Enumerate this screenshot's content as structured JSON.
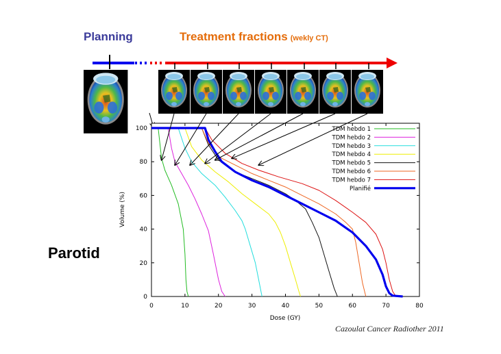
{
  "header": {
    "planning": "Planning",
    "treatment": "Treatment fractions",
    "treatment_sub": "(wekly CT)"
  },
  "side_label": "Parotid",
  "citation": "Cazoulat Cancer Radiother 2011",
  "colors": {
    "planning_text": "#3b3b9a",
    "treatment_text": "#e46c0a",
    "timeline_blue": "#0000ee",
    "timeline_red": "#ee0000"
  },
  "chart_data": {
    "type": "line",
    "xlabel": "Dose (GY)",
    "ylabel": "Volume (%)",
    "xlim": [
      0,
      80
    ],
    "ylim": [
      0,
      100
    ],
    "xticks": [
      0,
      10,
      20,
      30,
      40,
      50,
      60,
      70,
      80
    ],
    "yticks": [
      0,
      20,
      40,
      60,
      80,
      100
    ],
    "legend_position": "top-right",
    "series": [
      {
        "name": "TDM hebdo 1",
        "color": "#22bb22",
        "width": 1,
        "points": [
          [
            0,
            100
          ],
          [
            2,
            100
          ],
          [
            3,
            82
          ],
          [
            4,
            75
          ],
          [
            6,
            66
          ],
          [
            8,
            55
          ],
          [
            9.5,
            40
          ],
          [
            10,
            25
          ],
          [
            10.3,
            10
          ],
          [
            10.6,
            3
          ],
          [
            11,
            0
          ]
        ]
      },
      {
        "name": "TDM hebdo 2",
        "color": "#dd22dd",
        "width": 1,
        "points": [
          [
            0,
            100
          ],
          [
            5,
            100
          ],
          [
            6,
            88
          ],
          [
            7,
            80
          ],
          [
            9,
            73
          ],
          [
            11,
            66
          ],
          [
            13,
            58
          ],
          [
            15,
            49
          ],
          [
            17,
            39
          ],
          [
            18.5,
            25
          ],
          [
            20,
            10
          ],
          [
            21,
            3
          ],
          [
            22,
            0
          ]
        ]
      },
      {
        "name": "TDM hebdo 3",
        "color": "#22dddd",
        "width": 1,
        "points": [
          [
            0,
            100
          ],
          [
            8,
            100
          ],
          [
            10,
            88
          ],
          [
            12,
            80
          ],
          [
            15,
            73
          ],
          [
            19,
            66
          ],
          [
            22,
            59
          ],
          [
            25,
            51
          ],
          [
            27,
            45
          ],
          [
            28,
            40
          ],
          [
            29.5,
            30
          ],
          [
            31,
            20
          ],
          [
            32,
            10
          ],
          [
            32.7,
            3
          ],
          [
            33,
            0
          ]
        ]
      },
      {
        "name": "TDM hebdo 4",
        "color": "#eeee00",
        "width": 1,
        "points": [
          [
            0,
            100
          ],
          [
            10,
            100
          ],
          [
            12,
            89
          ],
          [
            15,
            81
          ],
          [
            19,
            74
          ],
          [
            23,
            68
          ],
          [
            27,
            61
          ],
          [
            31,
            55
          ],
          [
            35,
            49
          ],
          [
            37,
            44
          ],
          [
            38.5,
            38
          ],
          [
            40,
            30
          ],
          [
            41.5,
            20
          ],
          [
            43,
            10
          ],
          [
            44,
            3
          ],
          [
            44.5,
            0
          ]
        ]
      },
      {
        "name": "TDM hebdo 5",
        "color": "#111111",
        "width": 1,
        "points": [
          [
            0,
            100
          ],
          [
            15,
            100
          ],
          [
            17,
            90
          ],
          [
            20,
            81
          ],
          [
            25,
            74
          ],
          [
            30,
            70
          ],
          [
            35,
            66
          ],
          [
            40,
            61
          ],
          [
            43,
            57
          ],
          [
            46,
            52
          ],
          [
            48,
            44
          ],
          [
            50,
            35
          ],
          [
            51.5,
            25
          ],
          [
            53,
            15
          ],
          [
            54.5,
            5
          ],
          [
            55.5,
            0
          ]
        ]
      },
      {
        "name": "TDM hebdo 6",
        "color": "#ee6622",
        "width": 1,
        "points": [
          [
            0,
            100
          ],
          [
            15,
            100
          ],
          [
            17,
            91
          ],
          [
            20,
            83
          ],
          [
            25,
            78
          ],
          [
            30,
            73
          ],
          [
            35,
            69
          ],
          [
            40,
            65
          ],
          [
            45,
            60
          ],
          [
            50,
            55
          ],
          [
            55,
            49
          ],
          [
            58,
            44
          ],
          [
            60,
            40
          ],
          [
            61,
            32
          ],
          [
            62,
            20
          ],
          [
            63,
            8
          ],
          [
            64,
            0
          ]
        ]
      },
      {
        "name": "TDM hebdo 7",
        "color": "#dd1111",
        "width": 1,
        "points": [
          [
            0,
            100
          ],
          [
            16,
            100
          ],
          [
            18,
            93
          ],
          [
            22,
            85
          ],
          [
            27,
            79
          ],
          [
            32,
            75
          ],
          [
            38,
            71
          ],
          [
            45,
            67
          ],
          [
            50,
            63
          ],
          [
            55,
            57
          ],
          [
            60,
            50
          ],
          [
            64,
            44
          ],
          [
            67,
            37
          ],
          [
            69,
            28
          ],
          [
            70,
            20
          ],
          [
            71,
            10
          ],
          [
            72,
            3
          ],
          [
            73,
            0
          ]
        ]
      },
      {
        "name": "Planifié",
        "color": "#0000ee",
        "width": 3.2,
        "points": [
          [
            0,
            100
          ],
          [
            16,
            100
          ],
          [
            17,
            93
          ],
          [
            19,
            86
          ],
          [
            21,
            80
          ],
          [
            25,
            74
          ],
          [
            30,
            69
          ],
          [
            35,
            65
          ],
          [
            40,
            60
          ],
          [
            45,
            55
          ],
          [
            50,
            50
          ],
          [
            55,
            45
          ],
          [
            60,
            38
          ],
          [
            64,
            30
          ],
          [
            67,
            22
          ],
          [
            69,
            13
          ],
          [
            70,
            6
          ],
          [
            71,
            2
          ],
          [
            72,
            0.5
          ],
          [
            75,
            0
          ]
        ]
      }
    ]
  },
  "annotations": {
    "arrows": [
      {
        "from": [
          1,
          0
        ],
        "to": [
          3,
          81
        ]
      },
      {
        "from": [
          2,
          0
        ],
        "to": [
          7,
          78
        ]
      },
      {
        "from": [
          3,
          0
        ],
        "to": [
          11.5,
          78
        ]
      },
      {
        "from": [
          4,
          0
        ],
        "to": [
          16,
          79
        ]
      },
      {
        "from": [
          5,
          0
        ],
        "to": [
          19,
          81
        ]
      },
      {
        "from": [
          6,
          0
        ],
        "to": [
          24,
          82
        ]
      },
      {
        "from": [
          7,
          0
        ],
        "to": [
          32,
          78
        ]
      }
    ]
  }
}
